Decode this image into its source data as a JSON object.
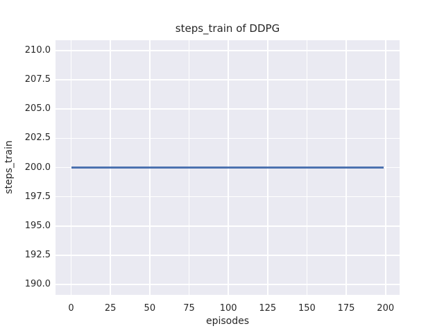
{
  "figure": {
    "title": "steps_train of DDPG"
  },
  "axes": {
    "xlabel": "episodes",
    "ylabel": "steps_train"
  },
  "chart_data": {
    "type": "line",
    "title": "steps_train of DDPG",
    "xlabel": "episodes",
    "ylabel": "steps_train",
    "xlim": [
      -9.95,
      208.95
    ],
    "ylim": [
      189.1,
      210.9
    ],
    "x_ticks": [
      0,
      25,
      50,
      75,
      100,
      125,
      150,
      175,
      200
    ],
    "x_tick_labels": [
      "0",
      "25",
      "50",
      "75",
      "100",
      "125",
      "150",
      "175",
      "200"
    ],
    "y_ticks": [
      210.0,
      207.5,
      205.0,
      202.5,
      200.0,
      197.5,
      195.0,
      192.5,
      190.0
    ],
    "y_tick_labels": [
      "210.0",
      "207.5",
      "205.0",
      "202.5",
      "200.0",
      "197.5",
      "195.0",
      "192.5",
      "190.0"
    ],
    "grid": true,
    "legend": "none",
    "series": [
      {
        "name": "steps_train",
        "description": "constant value 200 for every episode from 0 to 199",
        "x": [
          0,
          199
        ],
        "values": [
          200,
          200
        ],
        "color": "#4C72B0"
      }
    ],
    "style": {
      "figure_background": "#FFFFFF",
      "plot_background": "#EAEAF2",
      "grid_color": "#FFFFFF",
      "text_color": "#262626"
    }
  }
}
